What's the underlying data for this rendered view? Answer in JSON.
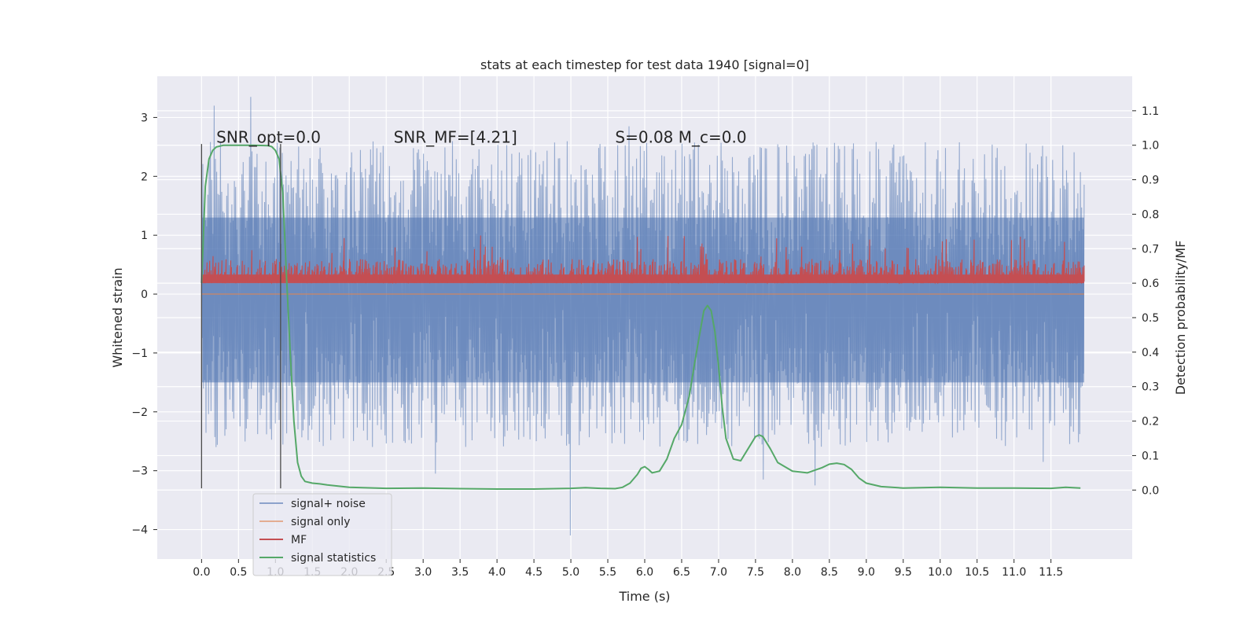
{
  "chart_data": {
    "type": "line",
    "title": "stats at each timestep for test data 1940 [signal=0]",
    "xlabel": "Time (s)",
    "ylabel": "Whitened strain",
    "y2label": "Detection probability/MF",
    "xlim": [
      -0.6,
      12.6
    ],
    "ylim": [
      -4.5,
      3.7
    ],
    "y2lim": [
      -0.2,
      1.2
    ],
    "xticks": [
      0.0,
      0.5,
      1.0,
      1.5,
      2.0,
      2.5,
      3.0,
      3.5,
      4.0,
      4.5,
      5.0,
      5.5,
      6.0,
      6.5,
      7.0,
      7.5,
      8.0,
      8.5,
      9.0,
      9.5,
      10.0,
      10.5,
      11.0,
      11.5
    ],
    "xtick_labels": [
      "0.0",
      "0.5",
      "1.0",
      "1.5",
      "2.0",
      "2.5",
      "3.0",
      "3.5",
      "4.0",
      "4.5",
      "5.0",
      "5.5",
      "6.0",
      "6.5",
      "7.0",
      "7.5",
      "8.0",
      "8.5",
      "9.0",
      "9.5",
      "10.0",
      "10.5",
      "11.0",
      "11.5"
    ],
    "yticks": [
      -4,
      -3,
      -2,
      -1,
      0,
      1,
      2,
      3
    ],
    "ytick_labels": [
      "−4",
      "−3",
      "−2",
      "−1",
      "0",
      "1",
      "2",
      "3"
    ],
    "y2ticks": [
      0.0,
      0.1,
      0.2,
      0.3,
      0.4,
      0.5,
      0.6,
      0.7,
      0.8,
      0.9,
      1.0,
      1.1
    ],
    "y2tick_labels": [
      "0.0",
      "0.1",
      "0.2",
      "0.3",
      "0.4",
      "0.5",
      "0.6",
      "0.7",
      "0.8",
      "0.9",
      "1.0",
      "1.1"
    ],
    "grid": true,
    "legend_position": "lower-left",
    "annotations": [
      {
        "text": "SNR_opt=0.0",
        "x": 0.2,
        "y": 2.6
      },
      {
        "text": "SNR_MF=[4.21]",
        "x": 2.6,
        "y": 2.6
      },
      {
        "text": "S=0.08   M_c=0.0",
        "x": 5.6,
        "y": 2.6
      }
    ],
    "vlines": [
      {
        "x": 0.0,
        "ymin": -3.3,
        "ymax": 2.55
      },
      {
        "x": 1.07,
        "ymin": -3.3,
        "ymax": 2.55
      }
    ],
    "series": [
      {
        "name": "signal+ noise",
        "color": "#4c72b0",
        "axis": "left",
        "kind": "noise",
        "x_range": [
          0.0,
          11.95
        ],
        "envelope_upper": 1.3,
        "envelope_lower": -1.5,
        "typical_peak": 2.6,
        "typical_trough": -2.6,
        "spikes": [
          {
            "x": 0.17,
            "y": 3.2
          },
          {
            "x": 0.67,
            "y": 3.35
          },
          {
            "x": 5.0,
            "y": -4.1
          },
          {
            "x": 3.17,
            "y": -3.05
          },
          {
            "x": 7.6,
            "y": -3.15
          },
          {
            "x": 8.3,
            "y": -3.25
          },
          {
            "x": 11.4,
            "y": -2.85
          },
          {
            "x": 5.78,
            "y": 2.85
          }
        ]
      },
      {
        "name": "signal only",
        "color": "#dd8452",
        "axis": "left",
        "x": [
          0.0,
          11.95
        ],
        "y": [
          0.0,
          0.0
        ]
      },
      {
        "name": "MF",
        "color": "#c44e52",
        "axis": "right",
        "kind": "noise",
        "x_range": [
          0.0,
          11.95
        ],
        "baseline": 0.6,
        "typical_peak": 0.67,
        "max": 0.74
      },
      {
        "name": "signal statistics",
        "color": "#55a868",
        "axis": "right",
        "x": [
          0.0,
          0.05,
          0.1,
          0.15,
          0.2,
          0.3,
          0.5,
          0.7,
          0.9,
          0.95,
          1.0,
          1.05,
          1.1,
          1.15,
          1.2,
          1.25,
          1.3,
          1.35,
          1.4,
          1.5,
          1.6,
          1.7,
          2.0,
          2.5,
          3.0,
          3.5,
          4.0,
          4.5,
          5.0,
          5.2,
          5.4,
          5.6,
          5.7,
          5.8,
          5.9,
          5.95,
          6.0,
          6.05,
          6.1,
          6.2,
          6.3,
          6.4,
          6.5,
          6.6,
          6.7,
          6.8,
          6.85,
          6.9,
          6.95,
          7.0,
          7.05,
          7.1,
          7.2,
          7.3,
          7.4,
          7.5,
          7.55,
          7.6,
          7.7,
          7.8,
          8.0,
          8.2,
          8.4,
          8.5,
          8.6,
          8.7,
          8.8,
          8.9,
          9.0,
          9.2,
          9.5,
          10.0,
          10.5,
          11.0,
          11.5,
          11.7,
          11.9
        ],
        "y": [
          0.6,
          0.88,
          0.96,
          0.985,
          0.995,
          1.0,
          1.0,
          1.0,
          0.999,
          0.996,
          0.985,
          0.96,
          0.86,
          0.62,
          0.4,
          0.2,
          0.08,
          0.04,
          0.025,
          0.02,
          0.018,
          0.015,
          0.008,
          0.005,
          0.006,
          0.004,
          0.003,
          0.003,
          0.005,
          0.007,
          0.005,
          0.004,
          0.008,
          0.02,
          0.045,
          0.063,
          0.068,
          0.06,
          0.05,
          0.055,
          0.09,
          0.15,
          0.19,
          0.27,
          0.4,
          0.52,
          0.535,
          0.52,
          0.46,
          0.36,
          0.24,
          0.15,
          0.09,
          0.085,
          0.12,
          0.155,
          0.16,
          0.155,
          0.12,
          0.08,
          0.055,
          0.05,
          0.065,
          0.075,
          0.078,
          0.074,
          0.06,
          0.035,
          0.02,
          0.01,
          0.006,
          0.008,
          0.006,
          0.006,
          0.005,
          0.008,
          0.006
        ]
      }
    ]
  }
}
